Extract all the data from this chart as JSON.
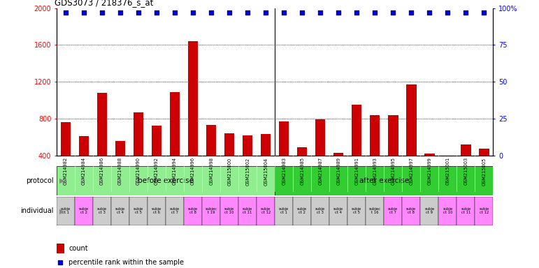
{
  "title": "GDS3073 / 218376_s_at",
  "samples": [
    "GSM214982",
    "GSM214984",
    "GSM214986",
    "GSM214988",
    "GSM214990",
    "GSM214992",
    "GSM214994",
    "GSM214996",
    "GSM214998",
    "GSM215000",
    "GSM215002",
    "GSM215004",
    "GSM214983",
    "GSM214985",
    "GSM214987",
    "GSM214989",
    "GSM214991",
    "GSM214993",
    "GSM214995",
    "GSM214997",
    "GSM214999",
    "GSM215001",
    "GSM215003",
    "GSM215005"
  ],
  "counts": [
    760,
    610,
    1080,
    560,
    870,
    720,
    1090,
    1640,
    730,
    640,
    620,
    630,
    770,
    490,
    790,
    430,
    950,
    840,
    840,
    1170,
    420,
    400,
    520,
    470
  ],
  "percentile_ranks": [
    97,
    97,
    97,
    97,
    97,
    97,
    97,
    97,
    97,
    97,
    97,
    97,
    97,
    97,
    97,
    97,
    97,
    97,
    97,
    97,
    97,
    97,
    97,
    97
  ],
  "ylim_left": [
    400,
    2000
  ],
  "ylim_right": [
    0,
    100
  ],
  "yticks_left": [
    400,
    800,
    1200,
    1600,
    2000
  ],
  "yticks_right": [
    0,
    25,
    50,
    75,
    100
  ],
  "bar_color": "#cc0000",
  "dot_color": "#0000cc",
  "protocol_before_color": "#90ee90",
  "protocol_after_color": "#33cc33",
  "individual_labels_before": [
    "subje\nct 1",
    "subje\nct 2",
    "subje\nct 3",
    "subje\nct 4",
    "subje\nct 5",
    "subje\nct 6",
    "subje\nct 7",
    "subje\nct 8",
    "subjec\nt 19",
    "subje\nct 10",
    "subje\nct 11",
    "subje\nct 12"
  ],
  "individual_labels_after": [
    "subje\nct 1",
    "subje\nct 2",
    "subje\nct 3",
    "subje\nct 4",
    "subje\nct 5",
    "subjec\nt 16",
    "subje\nct 7",
    "subje\nct 8",
    "subje\nct 9",
    "subje\nct 10",
    "subje\nct 11",
    "subje\nct 12"
  ],
  "indiv_colors_before": [
    "#cccccc",
    "#ff88ff",
    "#cccccc",
    "#cccccc",
    "#cccccc",
    "#cccccc",
    "#cccccc",
    "#ff88ff",
    "#ff88ff",
    "#ff88ff",
    "#ff88ff",
    "#ff88ff"
  ],
  "indiv_colors_after": [
    "#cccccc",
    "#cccccc",
    "#cccccc",
    "#cccccc",
    "#cccccc",
    "#cccccc",
    "#ff88ff",
    "#ff88ff",
    "#cccccc",
    "#ff88ff",
    "#ff88ff",
    "#ff88ff"
  ],
  "bg_color": "#ffffff",
  "xticklabel_bg": "#d8d8d8"
}
